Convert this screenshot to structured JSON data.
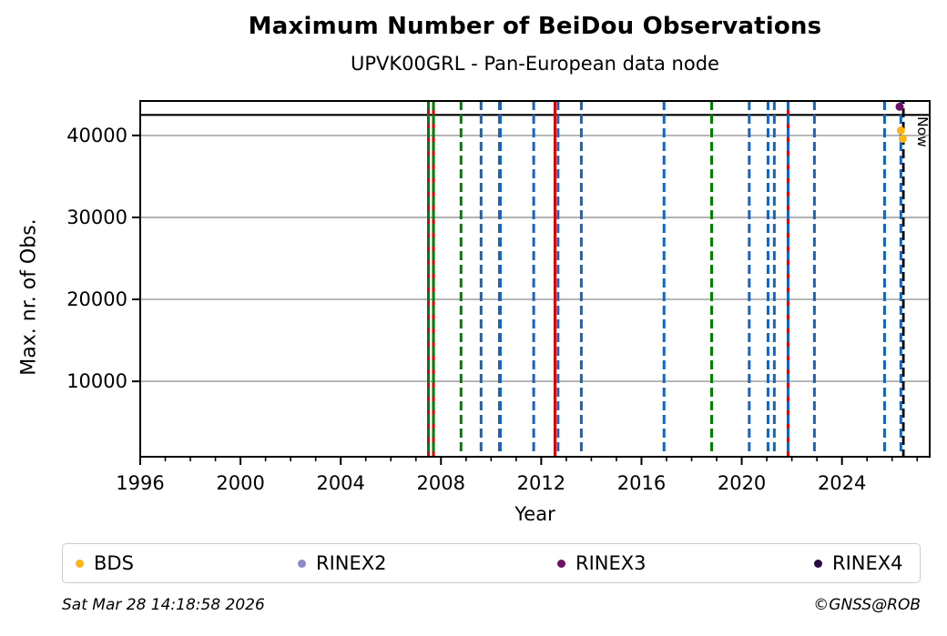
{
  "chart_data": {
    "type": "scatter",
    "title": "Maximum Number of BeiDou Observations",
    "subtitle": "UPVK00GRL - Pan-European data node",
    "xlabel": "Year",
    "ylabel": "Max. nr. of Obs.",
    "xlim": [
      1996,
      2027.5
    ],
    "ylim": [
      800,
      44200
    ],
    "xticks": [
      1996,
      2000,
      2004,
      2008,
      2012,
      2016,
      2020,
      2024
    ],
    "yticks": [
      10000,
      20000,
      30000,
      40000
    ],
    "grid": "horizontal-gray",
    "hline": {
      "value": 42500,
      "color": "#000000"
    },
    "event_lines": [
      {
        "year": 2007.5,
        "color": "#DD0000",
        "style": "solid"
      },
      {
        "year": 2007.5,
        "color": "#008000",
        "style": "dashed"
      },
      {
        "year": 2007.7,
        "color": "#DD0000",
        "style": "solid"
      },
      {
        "year": 2007.7,
        "color": "#008000",
        "style": "dashed"
      },
      {
        "year": 2008.8,
        "color": "#008000",
        "style": "dashed"
      },
      {
        "year": 2009.6,
        "color": "#1565C0",
        "style": "dashed"
      },
      {
        "year": 2010.35,
        "color": "#1565C0",
        "style": "dashed",
        "width": 4
      },
      {
        "year": 2011.7,
        "color": "#1565C0",
        "style": "dashed"
      },
      {
        "year": 2012.55,
        "color": "#DD0000",
        "style": "solid"
      },
      {
        "year": 2012.67,
        "color": "#1565C0",
        "style": "dashed"
      },
      {
        "year": 2013.6,
        "color": "#1565C0",
        "style": "dashed"
      },
      {
        "year": 2016.9,
        "color": "#1565C0",
        "style": "dashed"
      },
      {
        "year": 2018.8,
        "color": "#008000",
        "style": "dashed"
      },
      {
        "year": 2020.3,
        "color": "#1565C0",
        "style": "dashed"
      },
      {
        "year": 2021.05,
        "color": "#1565C0",
        "style": "dashed"
      },
      {
        "year": 2021.3,
        "color": "#1565C0",
        "style": "dashed"
      },
      {
        "year": 2021.85,
        "color": "#DD0000",
        "style": "solid"
      },
      {
        "year": 2021.85,
        "color": "#1565C0",
        "style": "dashed"
      },
      {
        "year": 2022.9,
        "color": "#1565C0",
        "style": "dashed"
      },
      {
        "year": 2025.7,
        "color": "#1565C0",
        "style": "dashed"
      },
      {
        "year": 2026.35,
        "color": "#1565C0",
        "style": "dashed"
      }
    ],
    "now_line": {
      "year": 2026.45,
      "color": "#000000",
      "style": "dashed",
      "label": "Now"
    },
    "series": [
      {
        "name": "BDS",
        "color": "#FDB515",
        "points": [
          {
            "year": 2026.35,
            "value": 40600
          },
          {
            "year": 2026.42,
            "value": 39600
          }
        ]
      },
      {
        "name": "RINEX2",
        "color": "#8D8BC9",
        "points": []
      },
      {
        "name": "RINEX3",
        "color": "#6D1265",
        "points": [
          {
            "year": 2026.3,
            "value": 43500
          }
        ]
      },
      {
        "name": "RINEX4",
        "color": "#2B0B3F",
        "points": []
      }
    ]
  },
  "legend": {
    "items": [
      {
        "label": "BDS",
        "color": "#FDB515"
      },
      {
        "label": "RINEX2",
        "color": "#8D8BC9"
      },
      {
        "label": "RINEX3",
        "color": "#6D1265"
      },
      {
        "label": "RINEX4",
        "color": "#2B0B3F"
      }
    ]
  },
  "footer": {
    "timestamp": "Sat Mar 28 14:18:58 2026",
    "credit": "©GNSS@ROB"
  },
  "colors": {
    "frame": "#000000",
    "grid": "#ADADAD",
    "antenna_event": "#008000",
    "receiver_event": "#DD0000",
    "firmware_event": "#1565C0"
  }
}
